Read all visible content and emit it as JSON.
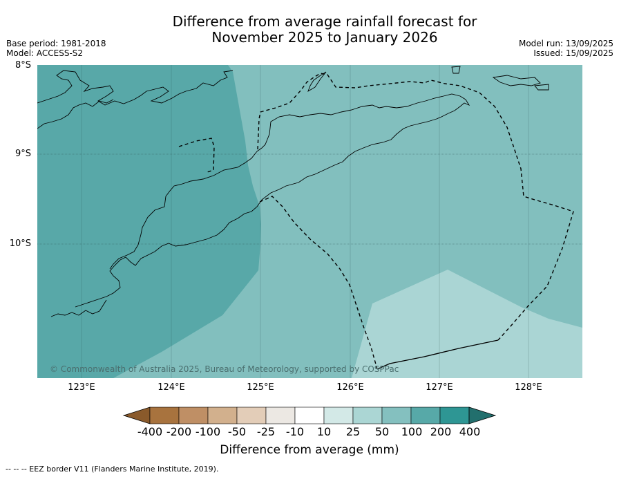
{
  "title_line1": "Difference from average rainfall forecast for",
  "title_line2": "November 2025 to January 2026",
  "meta_left": {
    "base_period": "Base period: 1981-2018",
    "model": "Model: ACCESS-S2"
  },
  "meta_right": {
    "model_run": "Model run: 13/09/2025",
    "issued": "Issued: 15/09/2025"
  },
  "lat_labels": [
    "8°S",
    "9°S",
    "10°S"
  ],
  "lon_labels": [
    "123°E",
    "124°E",
    "125°E",
    "126°E",
    "127°E",
    "128°E"
  ],
  "copyright": "© Commonwealth of Australia 2025, Bureau of Meteorology, supported by COSPPac",
  "colorbar": {
    "labels": [
      "-400",
      "-200",
      "-100",
      "-50",
      "-25",
      "-10",
      "10",
      "25",
      "50",
      "100",
      "200",
      "400"
    ],
    "colors": [
      "#8a5a2b",
      "#a8733e",
      "#bf8f65",
      "#d2b08d",
      "#e3cdb8",
      "#ece8e3",
      "#ffffff",
      "#d3e9e7",
      "#abd6d4",
      "#84c0bf",
      "#57a9a8",
      "#2e9694",
      "#226f6d"
    ],
    "title": "Difference from average (mm)"
  },
  "map_colors": {
    "band_100_200": "#58a8a8",
    "band_50_100": "#82bfbe",
    "band_25_50": "#aad5d4"
  },
  "footnote": "--  --  -- EEZ border V11 (Flanders Marine Institute, 2019)."
}
